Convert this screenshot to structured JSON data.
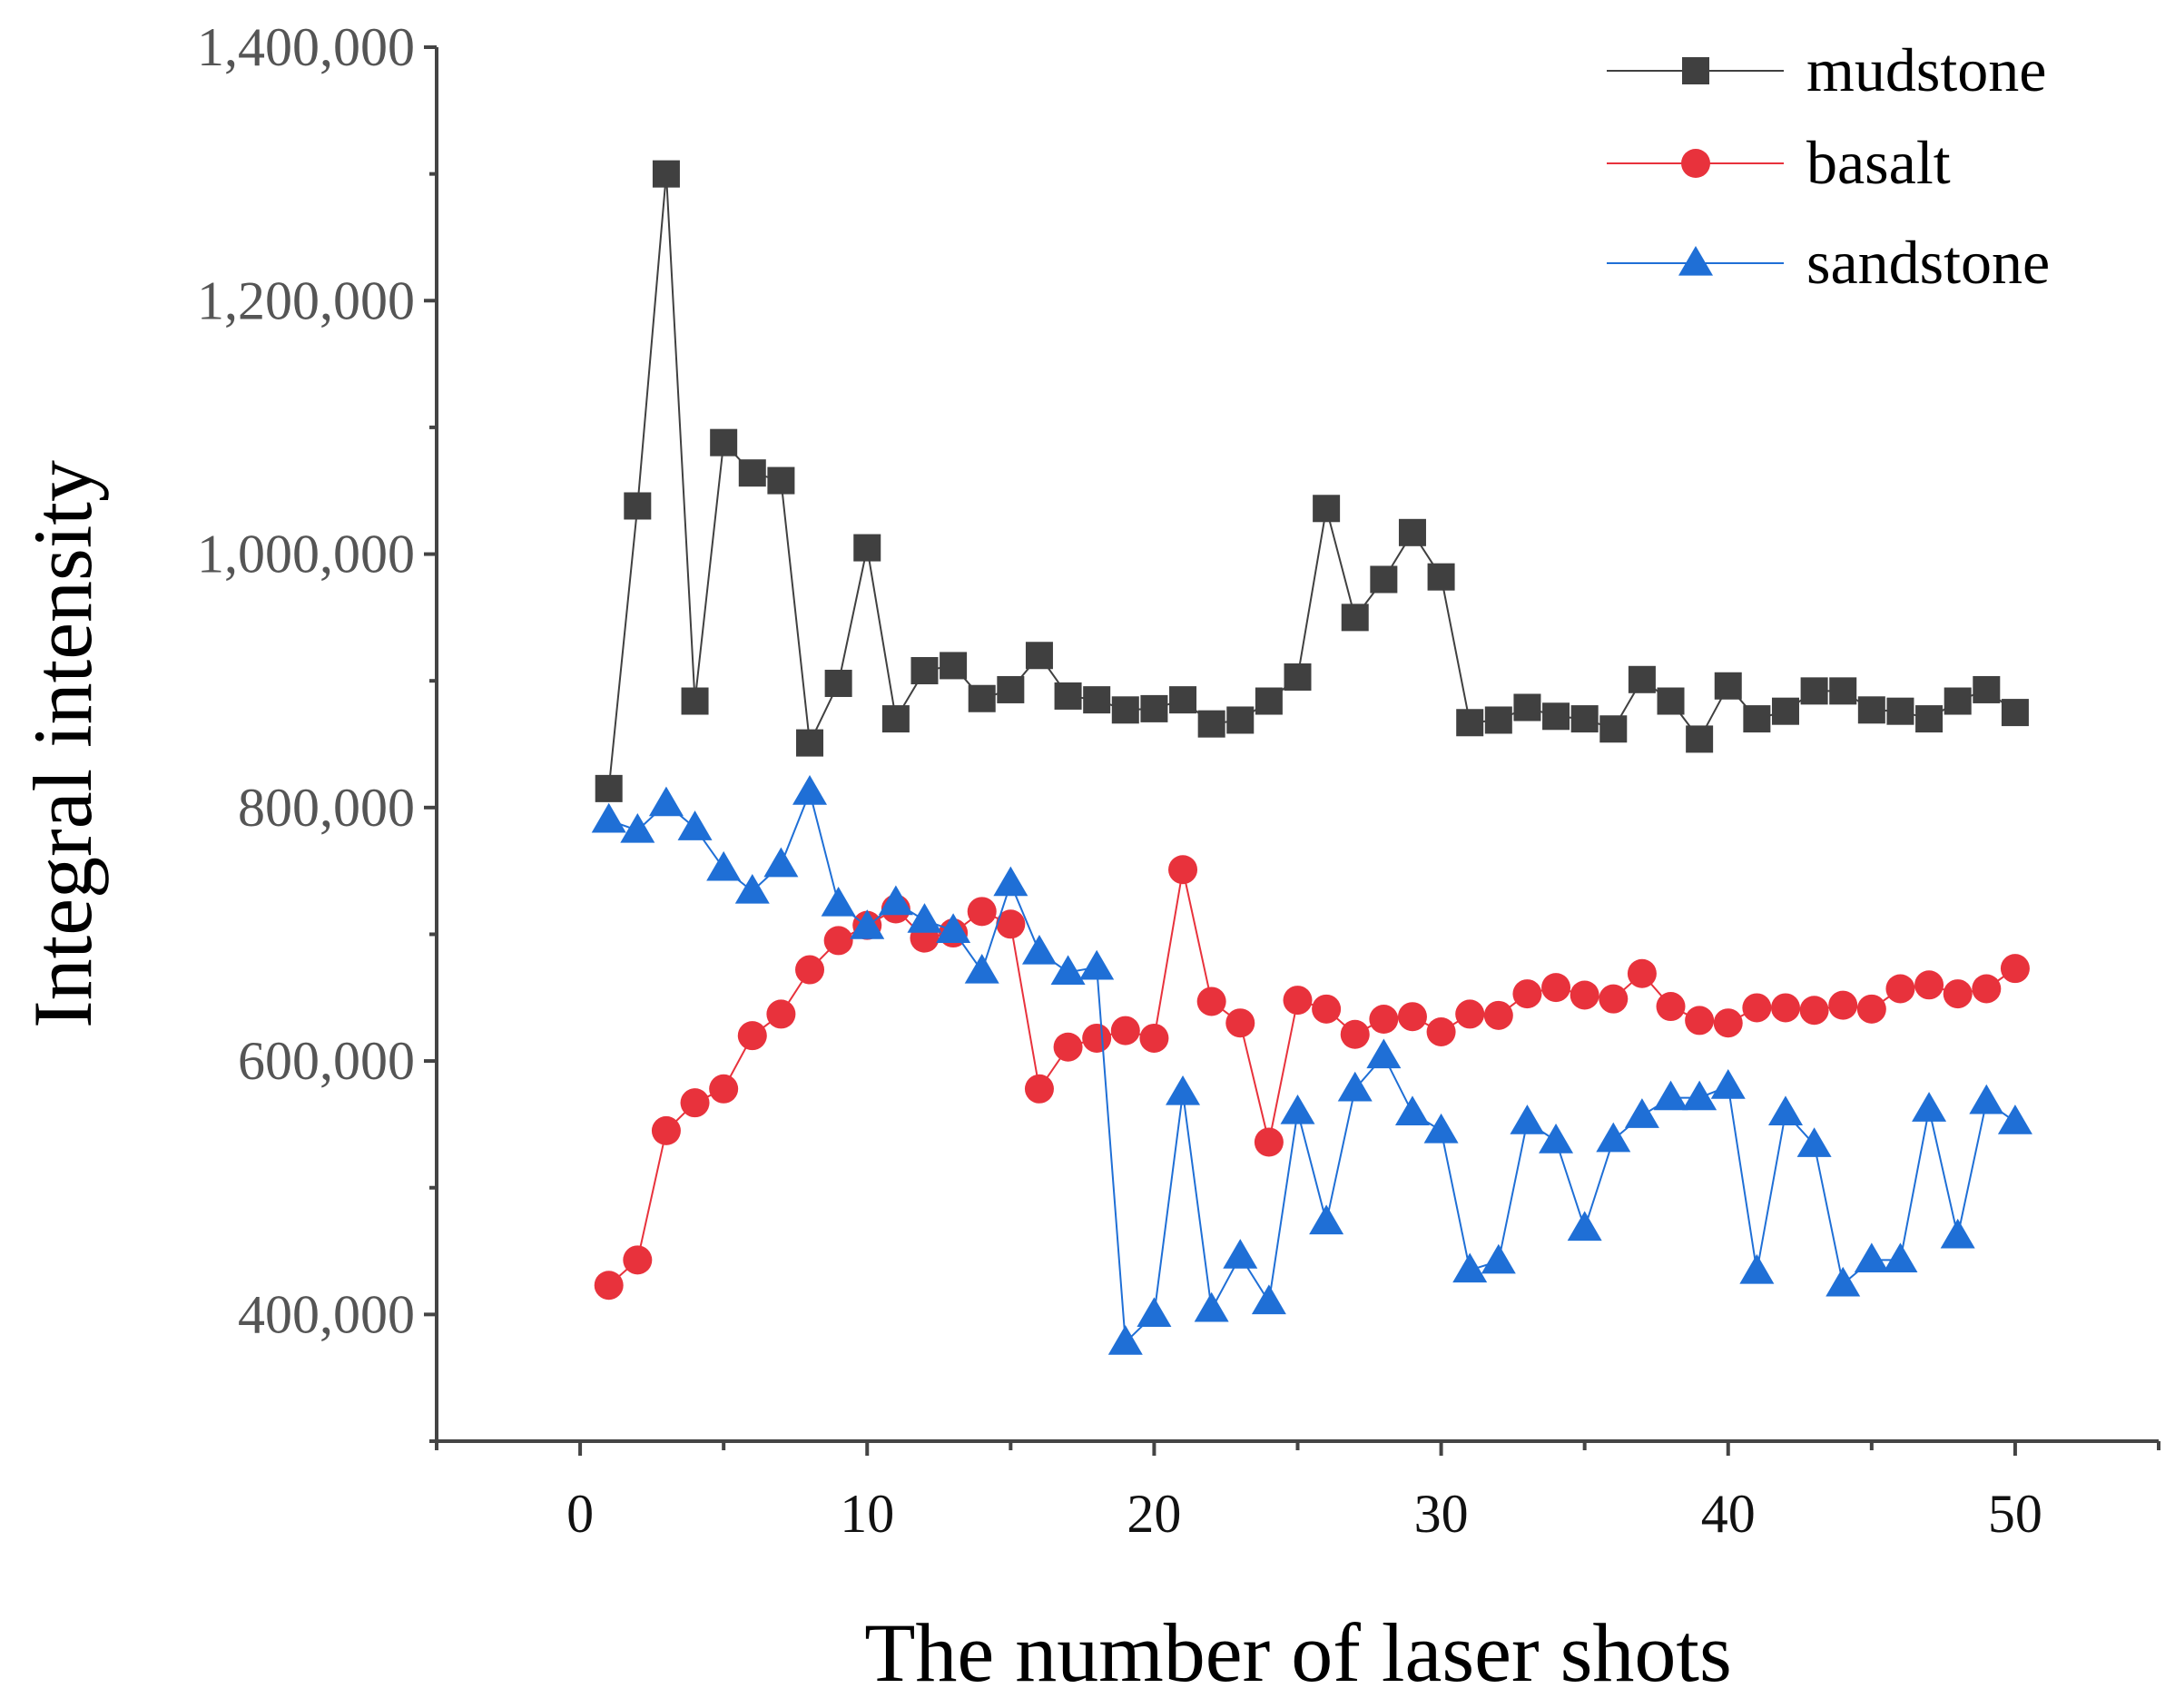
{
  "chart_data": {
    "type": "line",
    "title": "",
    "xlabel": "The number of laser shots",
    "ylabel": "Integral intensity",
    "xlim": [
      -5,
      55
    ],
    "ylim": [
      300000,
      1400000
    ],
    "x_ticks": [
      0,
      10,
      20,
      30,
      40,
      50
    ],
    "x_tick_labels": [
      "0",
      "10",
      "20",
      "30",
      "40",
      "50"
    ],
    "y_ticks": [
      400000,
      600000,
      800000,
      1000000,
      1200000,
      1400000
    ],
    "y_tick_labels": [
      "400,000",
      "600,000",
      "800,000",
      "1,000,000",
      "1,200,000",
      "1,400,000"
    ],
    "legend_position": "top-right",
    "grid": false,
    "x": [
      1,
      2,
      3,
      4,
      5,
      6,
      7,
      8,
      9,
      10,
      11,
      12,
      13,
      14,
      15,
      16,
      17,
      18,
      19,
      20,
      21,
      22,
      23,
      24,
      25,
      26,
      27,
      28,
      29,
      30,
      31,
      32,
      33,
      34,
      35,
      36,
      37,
      38,
      39,
      40,
      41,
      42,
      43,
      44,
      45,
      46,
      47,
      48,
      49,
      50
    ],
    "series": [
      {
        "name": "mudstone",
        "color": "#404040",
        "marker": "square",
        "values": [
          815000,
          1038000,
          1300000,
          884000,
          1088000,
          1064000,
          1058000,
          851000,
          898000,
          1005000,
          870000,
          908000,
          912000,
          886000,
          893000,
          920000,
          888000,
          885000,
          877000,
          878000,
          885000,
          866000,
          869000,
          884000,
          903000,
          1036000,
          950000,
          980000,
          1017000,
          982000,
          867000,
          869000,
          879000,
          872000,
          870000,
          862000,
          901000,
          884000,
          854000,
          896000,
          870000,
          876000,
          892000,
          892000,
          877000,
          876000,
          870000,
          884000,
          893000,
          875000
        ]
      },
      {
        "name": "basalt",
        "color": "#e8323c",
        "marker": "circle",
        "values": [
          423000,
          443000,
          545000,
          567000,
          578000,
          620000,
          637000,
          672000,
          695000,
          707000,
          720000,
          697000,
          701000,
          718000,
          708000,
          578000,
          611000,
          618000,
          624000,
          618000,
          751000,
          647000,
          630000,
          536000,
          648000,
          641000,
          621000,
          633000,
          635000,
          623000,
          637000,
          636000,
          653000,
          658000,
          652000,
          649000,
          669000,
          643000,
          632000,
          630000,
          642000,
          642000,
          640000,
          644000,
          641000,
          657000,
          660000,
          653000,
          657000,
          673000
        ]
      },
      {
        "name": "sandstone",
        "color": "#1f6fd6",
        "marker": "triangle",
        "values": [
          790000,
          782000,
          803000,
          784000,
          752000,
          734000,
          755000,
          812000,
          724000,
          706000,
          725000,
          711000,
          703000,
          671000,
          740000,
          686000,
          670000,
          674000,
          378000,
          400000,
          575000,
          404000,
          446000,
          410000,
          560000,
          473000,
          578000,
          604000,
          559000,
          545000,
          435000,
          442000,
          552000,
          537000,
          468000,
          538000,
          557000,
          571000,
          571000,
          580000,
          434000,
          559000,
          534000,
          424000,
          443000,
          443000,
          562000,
          462000,
          568000,
          552000
        ]
      }
    ]
  }
}
